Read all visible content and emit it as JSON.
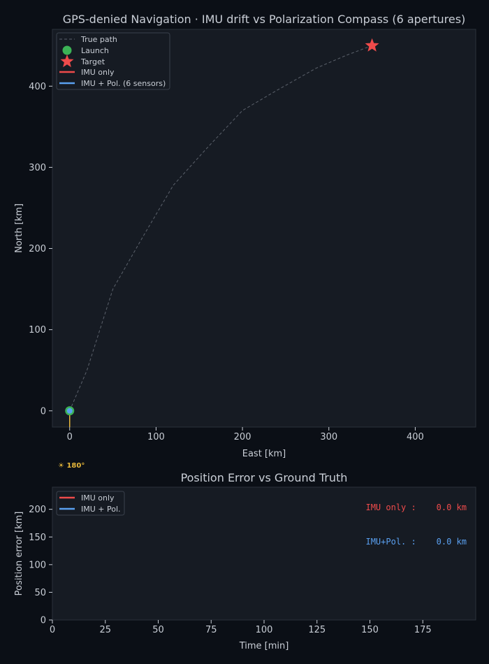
{
  "colors": {
    "figure_bg": "#0b0f16",
    "axes_bg": "#161b23",
    "axes_edge": "#2b313b",
    "text": "#c9ced6",
    "true_path": "#5c626c",
    "launch": "#3cb356",
    "target": "#ef4b4b",
    "imu": "#ef4b4b",
    "pol": "#5aa0f0",
    "sun": "#e8b83a"
  },
  "chart_data": [
    {
      "type": "line",
      "title": "GPS-denied Navigation  ·  IMU drift vs Polarization Compass (6 apertures)",
      "xlabel": "East [km]",
      "ylabel": "North [km]",
      "xlim": [
        -20,
        470
      ],
      "ylim": [
        -20,
        470
      ],
      "xticks": [
        0,
        100,
        200,
        300,
        400
      ],
      "yticks": [
        0,
        100,
        200,
        300,
        400
      ],
      "grid": false,
      "legend_position": "top-left",
      "legend": [
        "True path",
        "Launch",
        "Target",
        "IMU only",
        "IMU + Pol. (6 sensors)"
      ],
      "series": [
        {
          "name": "True path",
          "style": "dashed",
          "x": [
            0,
            20,
            35,
            50,
            85,
            120,
            160,
            200,
            240,
            285,
            320,
            350
          ],
          "y": [
            0,
            50,
            100,
            150,
            215,
            278,
            325,
            370,
            395,
            422,
            438,
            450
          ]
        },
        {
          "name": "Launch",
          "style": "marker-circle",
          "x": [
            0
          ],
          "y": [
            0
          ]
        },
        {
          "name": "Target",
          "style": "marker-star",
          "x": [
            350
          ],
          "y": [
            450
          ]
        },
        {
          "name": "IMU only",
          "style": "line",
          "x": [
            0
          ],
          "y": [
            0
          ]
        },
        {
          "name": "IMU + Pol. (6 sensors)",
          "style": "line",
          "x": [
            0
          ],
          "y": [
            0
          ]
        }
      ],
      "annotations": [
        {
          "text": "☀ 180°",
          "vector_from": [
            0,
            0
          ],
          "vector_to": [
            0,
            -20
          ]
        }
      ]
    },
    {
      "type": "line",
      "title": "Position Error vs Ground Truth",
      "xlabel": "Time [min]",
      "ylabel": "Position error [km]",
      "xlim": [
        0,
        200
      ],
      "ylim": [
        0,
        240
      ],
      "xticks": [
        0,
        25,
        50,
        75,
        100,
        125,
        150,
        175
      ],
      "yticks": [
        0,
        50,
        100,
        150,
        200
      ],
      "grid": false,
      "legend_position": "top-left",
      "legend": [
        "IMU only",
        "IMU + Pol."
      ],
      "series": [
        {
          "name": "IMU only",
          "x": [
            0
          ],
          "y": [
            0
          ]
        },
        {
          "name": "IMU + Pol.",
          "x": [
            0
          ],
          "y": [
            0
          ]
        }
      ],
      "readouts": [
        {
          "label": "IMU only :",
          "value": "0.0 km",
          "series": "IMU only"
        },
        {
          "label": "IMU+Pol. :",
          "value": "0.0 km",
          "series": "IMU + Pol."
        }
      ]
    }
  ]
}
